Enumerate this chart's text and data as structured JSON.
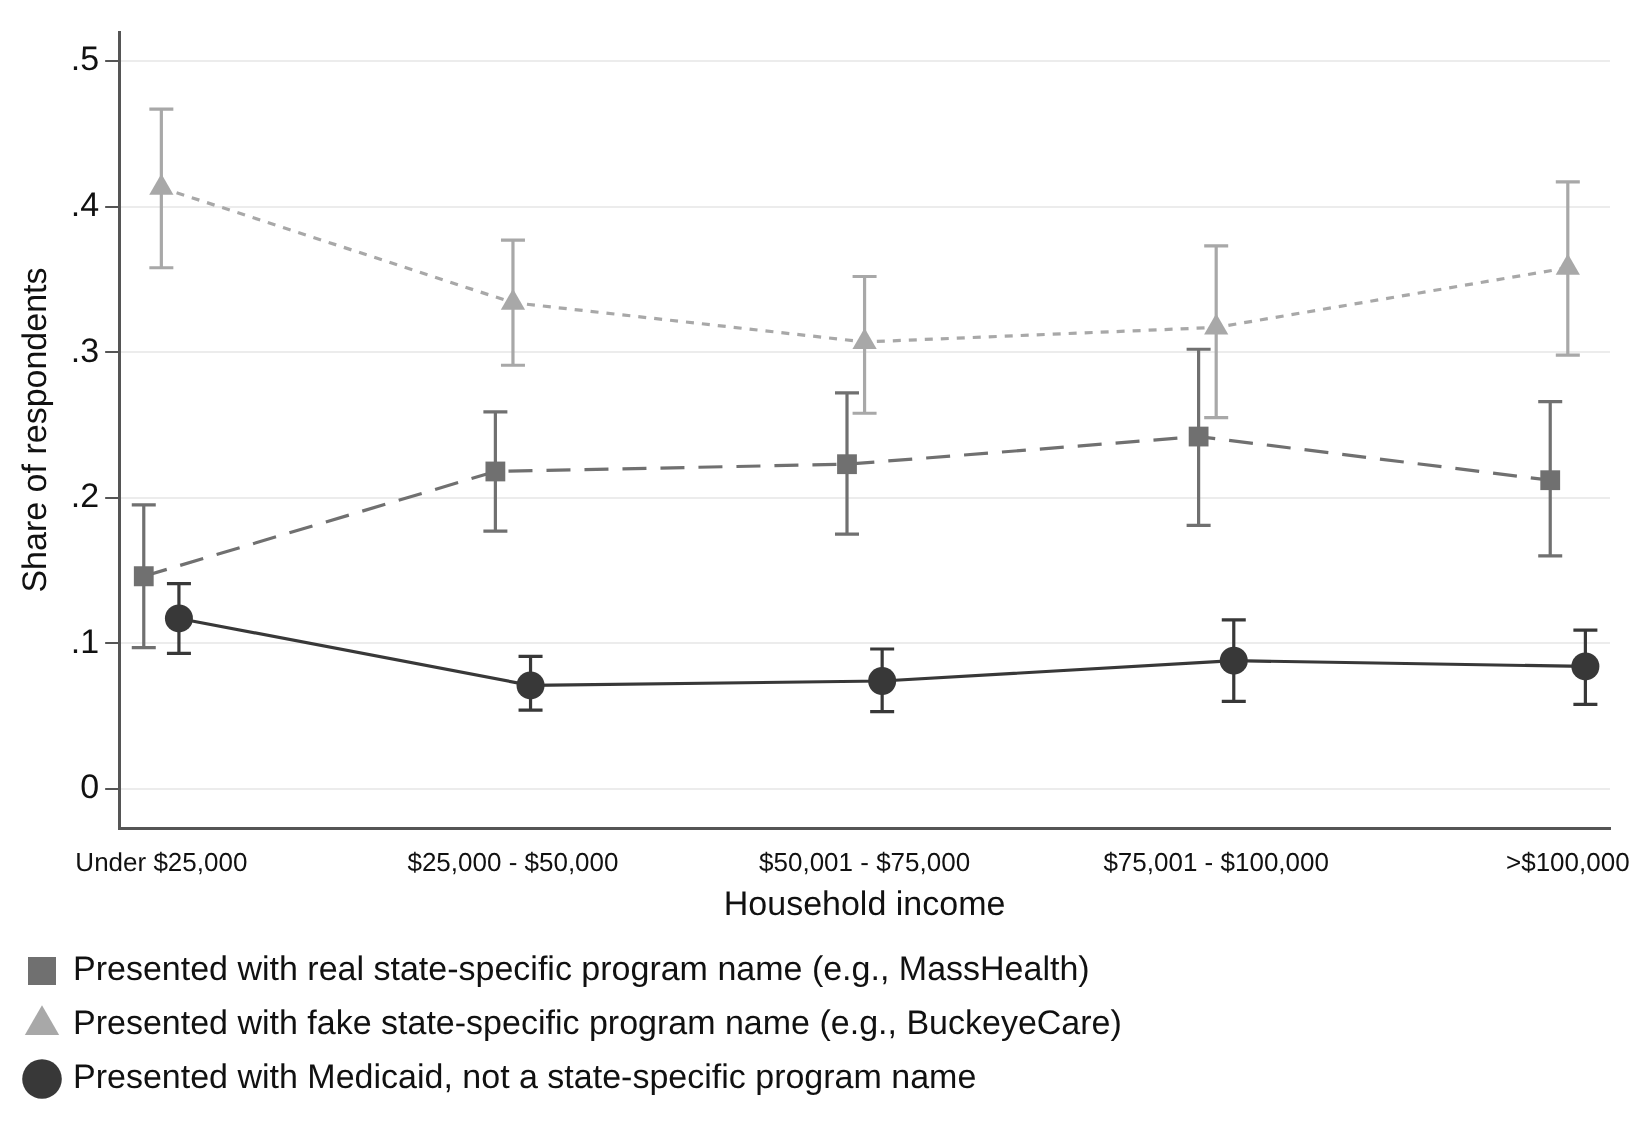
{
  "chart_data": {
    "type": "line",
    "xlabel": "Household income",
    "ylabel": "Share of respondents",
    "categories": [
      "Under $25,000",
      "$25,000 - $50,000",
      "$50,001 - $75,000",
      "$75,001 - $100,000",
      ">$100,000"
    ],
    "ylim": [
      -0.027,
      0.52
    ],
    "yticks": [
      0,
      {
        "value": 0.1,
        "label": ".1"
      },
      {
        "value": 0.2,
        "label": ".2"
      },
      {
        "value": 0.3,
        "label": ".3"
      },
      {
        "value": 0.4,
        "label": ".4"
      },
      {
        "value": 0.5,
        "label": ".5"
      }
    ],
    "grid": "y",
    "legend": "bottom",
    "series": [
      {
        "name": "Presented with real state-specific program name (e.g., MassHealth)",
        "color": "#707070",
        "marker": "square",
        "line_style": "dashed",
        "values": [
          0.146,
          0.218,
          0.223,
          0.242,
          0.212
        ],
        "errors": [
          [
            0.097,
            0.195
          ],
          [
            0.177,
            0.259
          ],
          [
            0.175,
            0.272
          ],
          [
            0.181,
            0.302
          ],
          [
            0.16,
            0.266
          ]
        ]
      },
      {
        "name": "Presented with fake state-specific program name (e.g., BuckeyeCare)",
        "color": "#a8a8a8",
        "marker": "triangle",
        "line_style": "dotted",
        "values": [
          0.413,
          0.334,
          0.307,
          0.317,
          0.358
        ],
        "errors": [
          [
            0.358,
            0.467
          ],
          [
            0.291,
            0.377
          ],
          [
            0.258,
            0.352
          ],
          [
            0.255,
            0.373
          ],
          [
            0.298,
            0.417
          ]
        ]
      },
      {
        "name": "Presented with Medicaid, not a state-specific program name",
        "color": "#383838",
        "marker": "circle",
        "line_style": "solid",
        "values": [
          0.117,
          0.071,
          0.074,
          0.088,
          0.084
        ],
        "errors": [
          [
            0.093,
            0.141
          ],
          [
            0.054,
            0.091
          ],
          [
            0.053,
            0.096
          ],
          [
            0.06,
            0.116
          ],
          [
            0.058,
            0.109
          ]
        ]
      }
    ]
  }
}
